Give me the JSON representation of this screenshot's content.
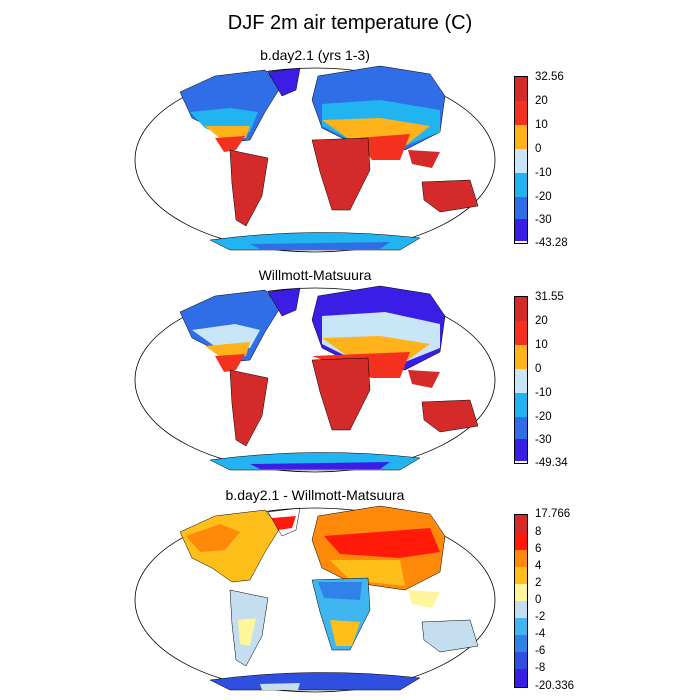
{
  "title": "DJF 2m air temperature (C)",
  "panels": [
    {
      "title": "b.day2.1 (yrs 1-3)",
      "colorbar": {
        "max_label": "32.56",
        "min_label": "-43.28",
        "levels": [
          "20",
          "10",
          "0",
          "-10",
          "-20",
          "-30"
        ],
        "colors": [
          "#d42a2a",
          "#f4301e",
          "#ffb21a",
          "#c8e6f8",
          "#22b4f0",
          "#2f6ee6",
          "#3a1ee6"
        ]
      }
    },
    {
      "title": "Willmott-Matsuura",
      "colorbar": {
        "max_label": "31.55",
        "min_label": "-49.34",
        "levels": [
          "20",
          "10",
          "0",
          "-10",
          "-20",
          "-30"
        ],
        "colors": [
          "#d42a2a",
          "#f4301e",
          "#ffb21a",
          "#c8e6f8",
          "#22b4f0",
          "#2f6ee6",
          "#3a1ee6"
        ]
      }
    },
    {
      "title": "b.day2.1 - Willmott-Matsuura",
      "colorbar": {
        "max_label": "17.766",
        "min_label": "-20.336",
        "levels": [
          "8",
          "6",
          "4",
          "2",
          "0",
          "-2",
          "-4",
          "-6",
          "-8"
        ],
        "colors": [
          "#d42a2a",
          "#ff1a0a",
          "#ff8a0a",
          "#ffbf1a",
          "#fff59a",
          "#c4def0",
          "#40b6f0",
          "#2e82e8",
          "#2f4fe0",
          "#3a1ee6"
        ]
      }
    }
  ]
}
